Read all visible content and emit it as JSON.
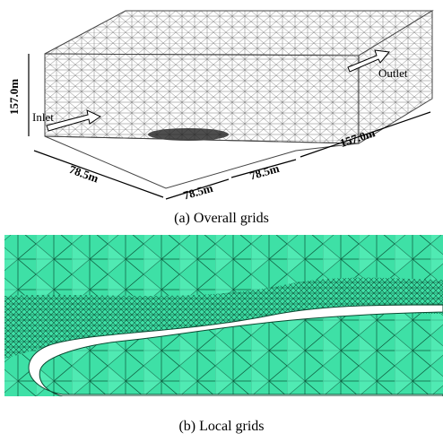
{
  "panel_a": {
    "height": "157.0m",
    "inlet": "Inlet",
    "outlet": "Outlet",
    "width_left": "78.5m",
    "width_mid_1": "78.5m",
    "width_mid_2": "78.5m",
    "length_right": "157.0m",
    "caption": "(a) Overall grids"
  },
  "panel_b": {
    "caption": "(b) Local grids"
  }
}
